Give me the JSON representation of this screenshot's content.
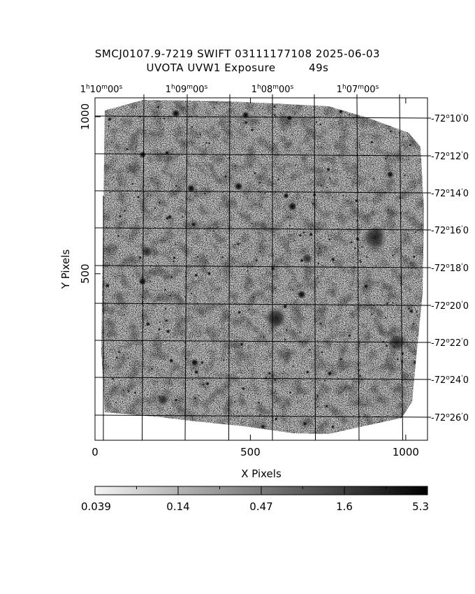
{
  "header": {
    "title_line1": "SMCJ0107.9-7219 SWIFT 03111177108 2025-06-03",
    "title_line2": "UVOTA UVW1 Exposure         49s"
  },
  "axes": {
    "x_label": "X Pixels",
    "y_label": "Y Pixels",
    "x_ticks": [
      {
        "value": 0,
        "label": "0"
      },
      {
        "value": 500,
        "label": "500"
      },
      {
        "value": 1000,
        "label": "1000"
      }
    ],
    "y_ticks": [
      {
        "value": 500,
        "label": "500"
      },
      {
        "value": 1000,
        "label": "1000"
      }
    ],
    "x_range": [
      0,
      1070
    ],
    "y_range": [
      -30,
      1060
    ]
  },
  "ra_labels": [
    {
      "value": "1h10m00s",
      "h": "1",
      "m": "10",
      "s": "00"
    },
    {
      "value": "1h09m00s",
      "h": "1",
      "m": "09",
      "s": "00"
    },
    {
      "value": "1h08m00s",
      "h": "1",
      "m": "08",
      "s": "00"
    },
    {
      "value": "1h07m00s",
      "h": "1",
      "m": "07",
      "s": "00"
    }
  ],
  "dec_labels": [
    {
      "d": "-72",
      "m": "10",
      "s": "0"
    },
    {
      "d": "-72",
      "m": "12",
      "s": "0"
    },
    {
      "d": "-72",
      "m": "14",
      "s": "0"
    },
    {
      "d": "-72",
      "m": "16",
      "s": "0"
    },
    {
      "d": "-72",
      "m": "18",
      "s": "0"
    },
    {
      "d": "-72",
      "m": "20",
      "s": "0"
    },
    {
      "d": "-72",
      "m": "22",
      "s": "0"
    },
    {
      "d": "-72",
      "m": "24",
      "s": "0"
    },
    {
      "d": "-72",
      "m": "26",
      "s": "0"
    }
  ],
  "colorbar": {
    "labels": [
      "0.039",
      "0.14",
      "0.47",
      "1.6",
      "5.3"
    ],
    "scale": "log",
    "colormap": "grayscale-inverted"
  },
  "colors": {
    "background": "#ffffff",
    "grid": "#000000",
    "image_low": "#ffffff",
    "image_high": "#000000"
  }
}
